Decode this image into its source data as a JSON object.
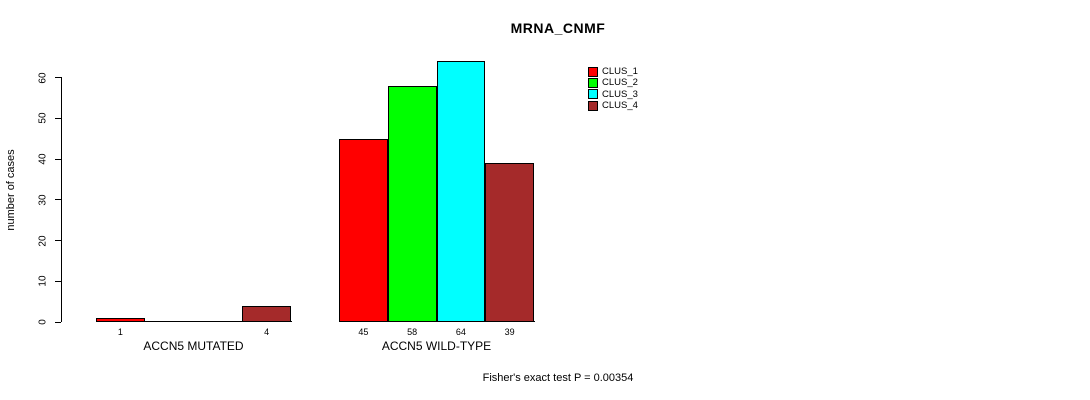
{
  "chart_data": {
    "type": "bar",
    "title": "MRNA_CNMF",
    "xlabel": "",
    "ylabel": "number of cases",
    "ylim": [
      0,
      60
    ],
    "yticks": [
      0,
      10,
      20,
      30,
      40,
      50,
      60
    ],
    "grid": false,
    "legend_position": "top-right-inside",
    "categories": [
      "ACCN5 MUTATED",
      "ACCN5 WILD-TYPE"
    ],
    "series": [
      {
        "name": "CLUS_1",
        "color": "#FF0000",
        "values": [
          1,
          45
        ]
      },
      {
        "name": "CLUS_2",
        "color": "#00FF00",
        "values": [
          0,
          58
        ]
      },
      {
        "name": "CLUS_3",
        "color": "#00FFFF",
        "values": [
          0,
          64
        ]
      },
      {
        "name": "CLUS_4",
        "color": "#A52A2A",
        "values": [
          4,
          39
        ]
      }
    ],
    "groups": [
      {
        "label": "ACCN5 MUTATED",
        "values": [
          1,
          0,
          0,
          4
        ],
        "value_labels": [
          "1",
          "",
          "",
          "4"
        ]
      },
      {
        "label": "ACCN5 WILD-TYPE",
        "values": [
          45,
          58,
          64,
          39
        ],
        "value_labels": [
          "45",
          "58",
          "64",
          "39"
        ]
      }
    ],
    "annotation": "Fisher's exact test P = 0.00354"
  }
}
